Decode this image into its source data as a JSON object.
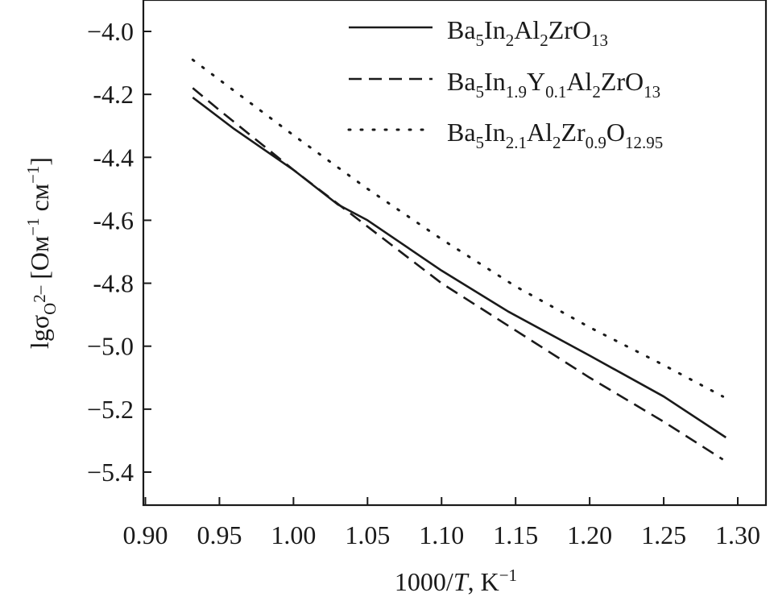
{
  "chart_data": {
    "type": "line",
    "title": "",
    "xlabel": {
      "prefix": "1000/",
      "var": "T",
      "suffix": ", K",
      "sup": "−1"
    },
    "ylabel": {
      "prefix": "lgσ",
      "sub": "O",
      "subsup": "2–",
      "units_open": " [Ом",
      "sup1": "−1",
      "units_mid": " см",
      "sup2": "−1",
      "units_close": "]"
    },
    "xlim": [
      0.9,
      1.31
    ],
    "ylim": [
      -5.5,
      -3.9
    ],
    "x_ticks": [
      0.9,
      0.95,
      1.0,
      1.05,
      1.1,
      1.15,
      1.2,
      1.25,
      1.3
    ],
    "x_tick_labels": [
      "0.90",
      "0.95",
      "1.00",
      "1.05",
      "1.10",
      "1.15",
      "1.20",
      "1.25",
      "1.30"
    ],
    "y_ticks": [
      -4.0,
      -4.2,
      -4.4,
      -4.6,
      -4.8,
      -5.0,
      -5.2,
      -5.4
    ],
    "y_tick_labels": [
      "−4.0",
      "-4.2",
      "-4.4",
      "-4.6",
      "-4.8",
      "−5.0",
      "−5.2",
      "−5.4"
    ],
    "grid": false,
    "legend_position": "top-right",
    "series": [
      {
        "name": "Ba5In2Al2ZrO13",
        "legend": [
          {
            "t": "Ba"
          },
          {
            "t": "5",
            "s": "sub"
          },
          {
            "t": "In"
          },
          {
            "t": "2",
            "s": "sub"
          },
          {
            "t": "Al"
          },
          {
            "t": "2",
            "s": "sub"
          },
          {
            "t": "ZrO"
          },
          {
            "t": "13",
            "s": "sub"
          }
        ],
        "style": "solid",
        "color": "#1a1a1a",
        "x": [
          0.932,
          0.96,
          1.0,
          1.03,
          1.05,
          1.1,
          1.145,
          1.2,
          1.25,
          1.292
        ],
        "y": [
          -4.21,
          -4.31,
          -4.44,
          -4.55,
          -4.6,
          -4.76,
          -4.89,
          -5.03,
          -5.16,
          -5.29
        ]
      },
      {
        "name": "Ba5In1.9Y0.1Al2ZrO13",
        "legend": [
          {
            "t": "Ba"
          },
          {
            "t": "5",
            "s": "sub"
          },
          {
            "t": "In"
          },
          {
            "t": "1.9",
            "s": "sub"
          },
          {
            "t": "Y"
          },
          {
            "t": "0.1",
            "s": "sub"
          },
          {
            "t": "Al"
          },
          {
            "t": "2",
            "s": "sub"
          },
          {
            "t": "ZrO"
          },
          {
            "t": "13",
            "s": "sub"
          }
        ],
        "style": "dashed",
        "color": "#1a1a1a",
        "x": [
          0.932,
          0.95,
          1.0,
          1.05,
          1.1,
          1.15,
          1.2,
          1.25,
          1.29
        ],
        "y": [
          -4.18,
          -4.25,
          -4.44,
          -4.62,
          -4.8,
          -4.95,
          -5.1,
          -5.24,
          -5.36
        ]
      },
      {
        "name": "Ba5In2.1Al2Zr0.9O12.95",
        "legend": [
          {
            "t": "Ba"
          },
          {
            "t": "5",
            "s": "sub"
          },
          {
            "t": "In"
          },
          {
            "t": "2.1",
            "s": "sub"
          },
          {
            "t": "Al"
          },
          {
            "t": "2",
            "s": "sub"
          },
          {
            "t": "Zr"
          },
          {
            "t": "0.9",
            "s": "sub"
          },
          {
            "t": "O"
          },
          {
            "t": "12.95",
            "s": "sub"
          }
        ],
        "style": "dotted",
        "color": "#1a1a1a",
        "x": [
          0.932,
          1.0,
          1.05,
          1.1,
          1.15,
          1.2,
          1.25,
          1.29
        ],
        "y": [
          -4.09,
          -4.33,
          -4.5,
          -4.66,
          -4.81,
          -4.94,
          -5.06,
          -5.16
        ]
      }
    ]
  }
}
